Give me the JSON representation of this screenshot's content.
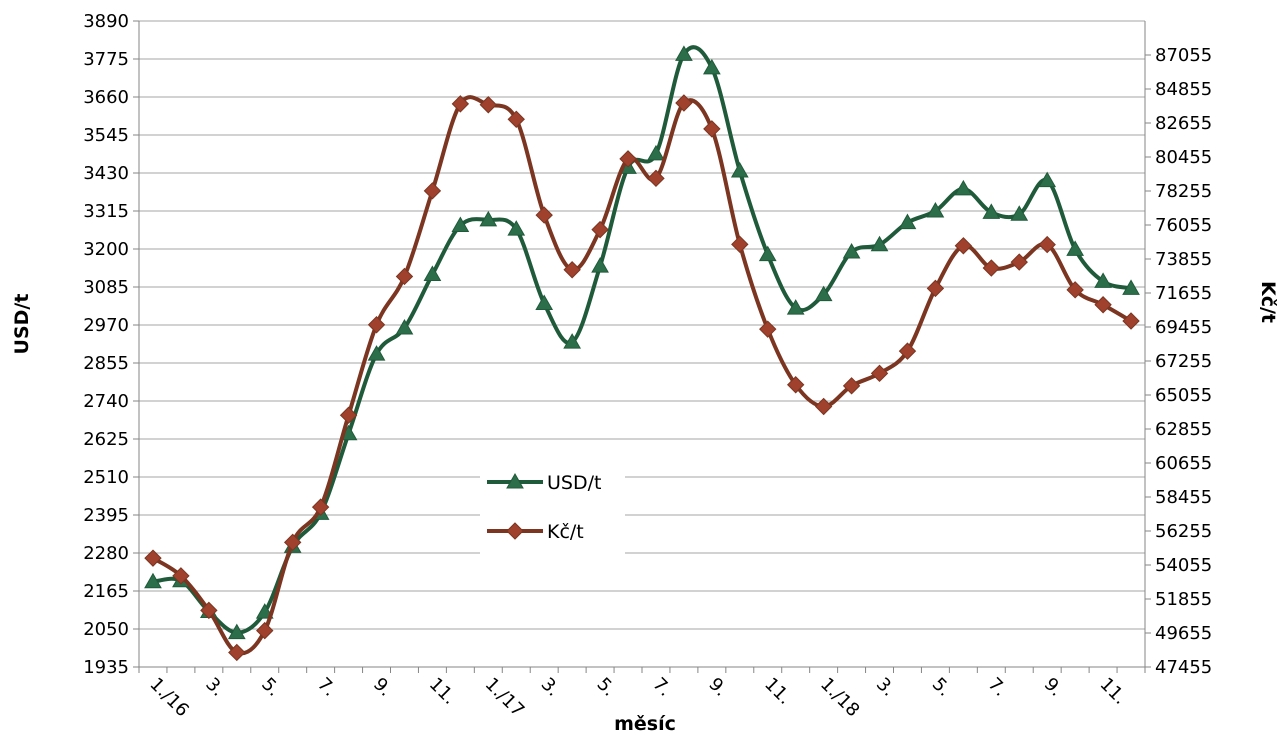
{
  "chart_data": {
    "type": "line",
    "xlabel": "měsíc",
    "ylabel": "USD/t",
    "y2label": "Kč/t",
    "ylim": [
      1935,
      3890
    ],
    "y2lim": [
      47455,
      89255
    ],
    "yticks": [
      1935,
      2050,
      2165,
      2280,
      2395,
      2510,
      2625,
      2740,
      2855,
      2970,
      3085,
      3200,
      3315,
      3430,
      3545,
      3660,
      3775,
      3890
    ],
    "y2ticks": [
      47455,
      49655,
      51855,
      54055,
      56255,
      58455,
      60655,
      62855,
      65055,
      67255,
      69455,
      71655,
      73855,
      76055,
      78255,
      80455,
      82655,
      84855,
      87055
    ],
    "x_tick_labels": [
      "1./16",
      "3.",
      "5.",
      "7.",
      "9.",
      "11.",
      "1./17",
      "3.",
      "5.",
      "7.",
      "9.",
      "11.",
      "1./18",
      "3.",
      "5.",
      "7.",
      "9.",
      "11."
    ],
    "grid": "horizontal",
    "legend_position": "center",
    "series": [
      {
        "name": "USD/t",
        "axis": "left",
        "color": "#1f5a3a",
        "marker": "triangle",
        "values": [
          2193,
          2196,
          2103,
          2039,
          2101,
          2300,
          2400,
          2641,
          2882,
          2961,
          3123,
          3271,
          3288,
          3260,
          3035,
          2918,
          3148,
          3447,
          3488,
          3789,
          3748,
          3436,
          3183,
          3021,
          3062,
          3191,
          3213,
          3280,
          3315,
          3382,
          3311,
          3305,
          3407,
          3199,
          3102,
          3081
        ]
      },
      {
        "name": "Kč/t",
        "axis": "right",
        "color": "#7b3520",
        "marker": "diamond",
        "values": [
          54498,
          53355,
          51120,
          48395,
          49808,
          55521,
          57801,
          63746,
          69600,
          72725,
          78267,
          83892,
          83835,
          82895,
          76697,
          73159,
          75756,
          80335,
          79074,
          83949,
          82274,
          74804,
          69314,
          65718,
          64310,
          65649,
          66457,
          67893,
          71953,
          74710,
          73270,
          73655,
          74788,
          71861,
          70895,
          69844
        ]
      }
    ]
  }
}
